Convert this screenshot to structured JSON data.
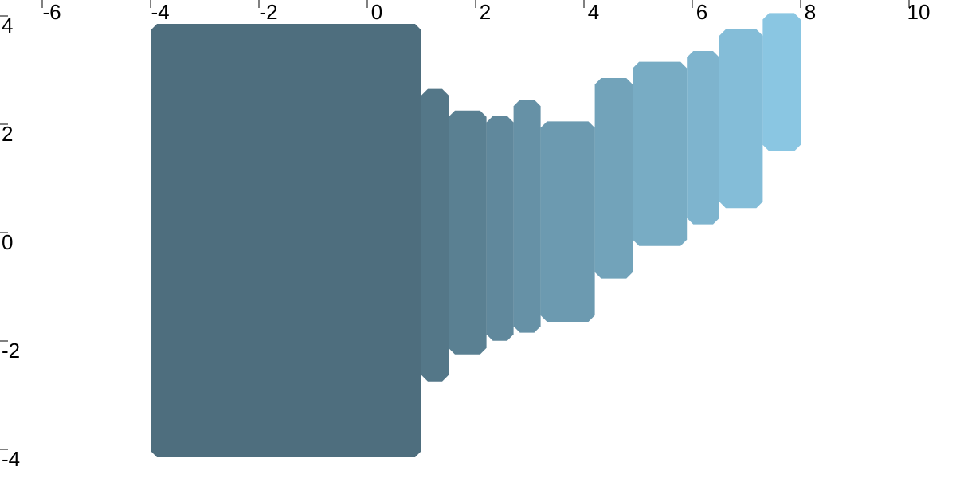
{
  "chart_data": {
    "type": "area",
    "title": "",
    "xlabel": "",
    "ylabel": "",
    "xlim": [
      -6.6,
      10.5
    ],
    "ylim": [
      -4.2,
      4.1
    ],
    "x_ticks": [
      -6,
      -4,
      -2,
      0,
      2,
      4,
      6,
      8,
      10
    ],
    "y_ticks": [
      4,
      2,
      0,
      -2,
      -4
    ],
    "grid": false,
    "legend": "none",
    "color_range": [
      "#4e6e7e",
      "#8ac6e2"
    ],
    "series": [
      {
        "x": [
          -4,
          1
        ],
        "y_low": [
          -4,
          -4
        ],
        "y_high": [
          4,
          4
        ]
      },
      {
        "x": [
          1,
          1.5
        ],
        "y_low": [
          -2.6,
          -2.6
        ],
        "y_high": [
          2.8,
          2.8
        ]
      },
      {
        "x": [
          1.5,
          2.2
        ],
        "y_low": [
          -2.1,
          -2.1
        ],
        "y_high": [
          2.4,
          2.4
        ]
      },
      {
        "x": [
          2.2,
          2.7
        ],
        "y_low": [
          -1.85,
          -1.85
        ],
        "y_high": [
          2.3,
          2.3
        ]
      },
      {
        "x": [
          2.7,
          3.2
        ],
        "y_low": [
          -1.7,
          -1.7
        ],
        "y_high": [
          2.6,
          2.6
        ]
      },
      {
        "x": [
          3.2,
          4.2
        ],
        "y_low": [
          -1.5,
          -1.5
        ],
        "y_high": [
          2.2,
          2.2
        ]
      },
      {
        "x": [
          4.2,
          4.9
        ],
        "y_low": [
          -0.7,
          -0.7
        ],
        "y_high": [
          3.0,
          3.0
        ]
      },
      {
        "x": [
          4.9,
          5.9
        ],
        "y_low": [
          -0.1,
          -0.1
        ],
        "y_high": [
          3.3,
          3.3
        ]
      },
      {
        "x": [
          5.9,
          6.5
        ],
        "y_low": [
          0.3,
          0.3
        ],
        "y_high": [
          3.5,
          3.5
        ]
      },
      {
        "x": [
          6.5,
          7.3
        ],
        "y_low": [
          0.6,
          0.6
        ],
        "y_high": [
          3.9,
          3.9
        ]
      },
      {
        "x": [
          7.3,
          8.0
        ],
        "y_low": [
          1.65,
          1.65
        ],
        "y_high": [
          4.2,
          4.2
        ]
      }
    ]
  }
}
